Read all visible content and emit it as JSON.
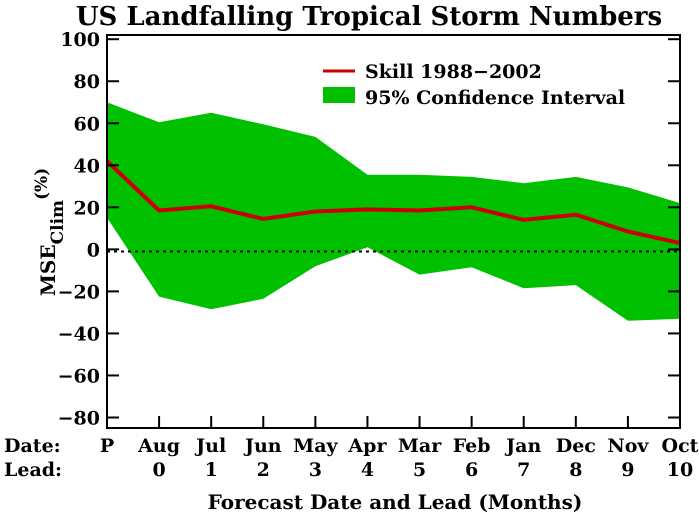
{
  "chart_data": {
    "type": "line",
    "title": "US Landfalling Tropical Storm Numbers",
    "xlabel": "Forecast Date and Lead (Months)",
    "ylabel": "MSE",
    "ylabel_sub": "Clim",
    "ylabel_unit": "(%)",
    "row_labels": {
      "date": "Date:",
      "lead": "Lead:"
    },
    "categories": [
      "P",
      "Aug",
      "Jul",
      "Jun",
      "May",
      "Apr",
      "Mar",
      "Feb",
      "Jan",
      "Dec",
      "Nov",
      "Oct"
    ],
    "leads": [
      "",
      "0",
      "1",
      "2",
      "3",
      "4",
      "5",
      "6",
      "7",
      "8",
      "9",
      "10"
    ],
    "ylim": [
      -85,
      102
    ],
    "yticks": [
      100,
      80,
      60,
      40,
      20,
      0,
      -20,
      -40,
      -60,
      -80
    ],
    "ytick_labels": [
      "100",
      "80",
      "60",
      "40",
      "20",
      "0",
      "−20",
      "−40",
      "−60",
      "−80"
    ],
    "zero_line": true,
    "legend_position": "top-right",
    "series": [
      {
        "name": "Skill 1988−2002",
        "kind": "line",
        "color": "#cc0000",
        "values": [
          42,
          18.5,
          20.5,
          14.5,
          18,
          19,
          18.5,
          20,
          14,
          16.5,
          8.5,
          3
        ]
      },
      {
        "name": "95% Confidence Interval",
        "kind": "band",
        "color": "#00c000",
        "upper": [
          70,
          60.5,
          65,
          59.5,
          53.5,
          35.5,
          35.5,
          34.5,
          31.5,
          34.5,
          29.5,
          22
        ],
        "lower": [
          15,
          -22.5,
          -28.5,
          -23.5,
          -8,
          1,
          -12,
          -8.5,
          -18.5,
          -17,
          -34,
          -33
        ]
      }
    ]
  }
}
